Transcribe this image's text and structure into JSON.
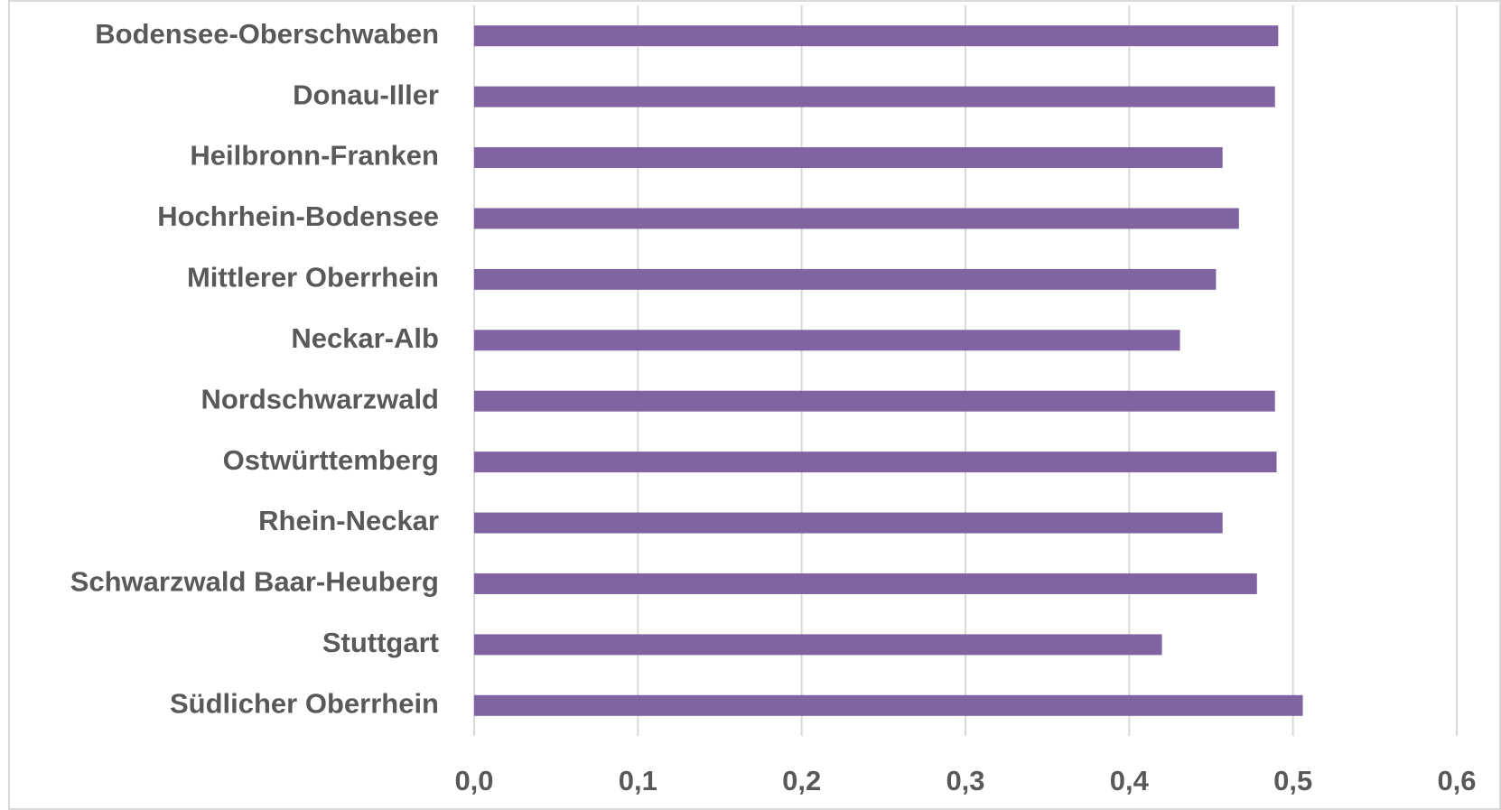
{
  "chart_data": {
    "type": "bar",
    "orientation": "horizontal",
    "categories": [
      "Bodensee-Oberschwaben",
      "Donau-Iller",
      "Heilbronn-Franken",
      "Hochrhein-Bodensee",
      "Mittlerer Oberrhein",
      "Neckar-Alb",
      "Nordschwarzwald",
      "Ostwürttemberg",
      "Rhein-Neckar",
      "Schwarzwald Baar-Heuberg",
      "Stuttgart",
      "Südlicher Oberrhein"
    ],
    "values": [
      0.491,
      0.489,
      0.457,
      0.467,
      0.453,
      0.431,
      0.489,
      0.49,
      0.457,
      0.478,
      0.42,
      0.506
    ],
    "color": "#8064a2",
    "xlim": [
      0,
      0.6
    ],
    "xticks": [
      {
        "value": 0,
        "label": "0,0"
      },
      {
        "value": 0.1,
        "label": "0,1"
      },
      {
        "value": 0.2,
        "label": "0,2"
      },
      {
        "value": 0.3,
        "label": "0,3"
      },
      {
        "value": 0.4,
        "label": "0,4"
      },
      {
        "value": 0.5,
        "label": "0,5"
      },
      {
        "value": 0.6,
        "label": "0,6"
      }
    ],
    "grid": true
  }
}
